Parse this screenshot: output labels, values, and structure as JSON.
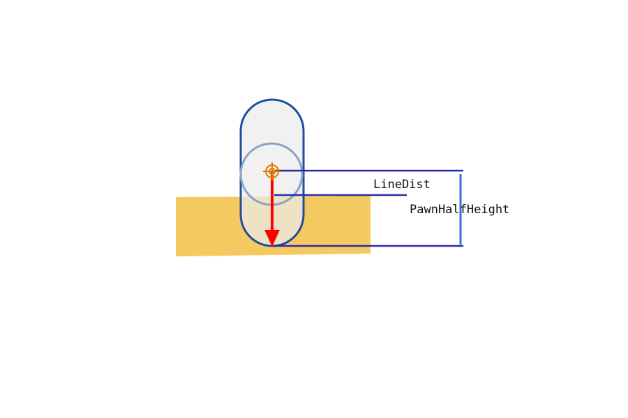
{
  "diagram": {
    "labels": {
      "line_dist": "LineDist",
      "pawn_half_height": "PawnHalfHeight"
    },
    "colors": {
      "ground": "#f4ca60",
      "capsule_fill": "#ececec",
      "capsule_stroke": "#1f4e9b",
      "inner_circle_stroke": "#8aa2c6",
      "arrow": "#ff0000",
      "origin_marker": "#e07b00",
      "measure_line": "#2b2ba8",
      "bracket": "#3b6fd6"
    },
    "icons": {
      "origin": "crosshair-icon",
      "arrow": "arrow-down-icon"
    }
  }
}
